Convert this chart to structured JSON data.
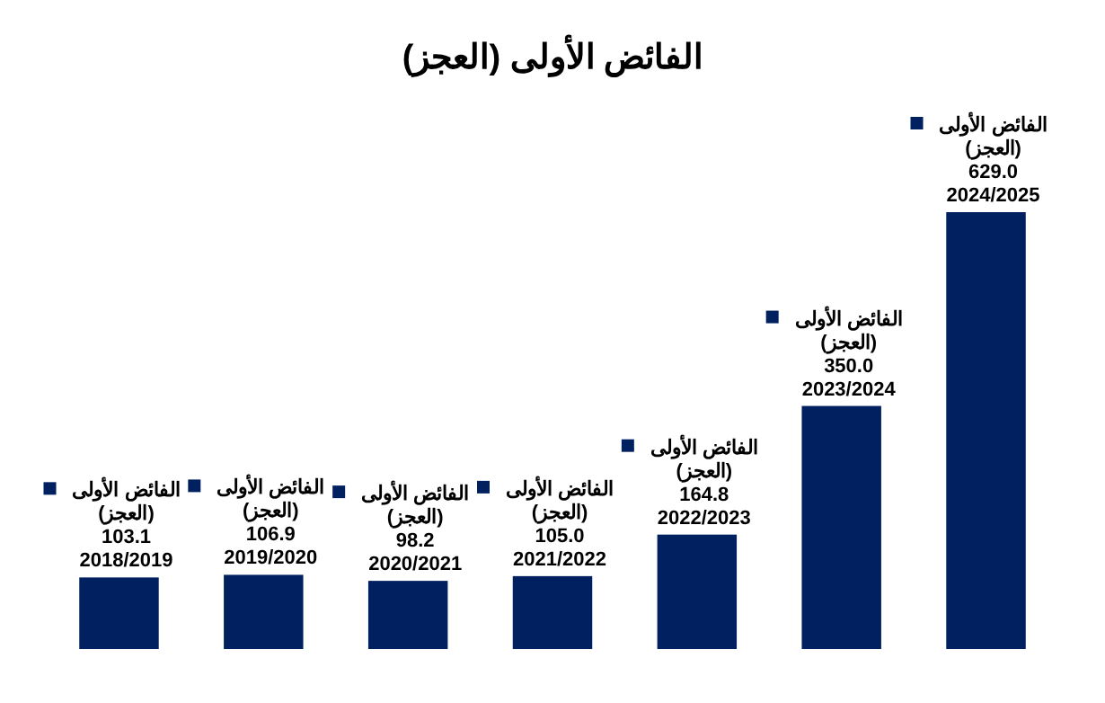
{
  "chart_data": {
    "type": "bar",
    "title": "الفائض الأولى (العجز)",
    "categories": [
      "2018/2019",
      "2019/2020",
      "2020/2021",
      "2021/2022",
      "2022/2023",
      "2023/2024",
      "2024/2025"
    ],
    "series": [
      {
        "name": "الفائض الأولى (العجز)",
        "color": "#002060",
        "values": [
          103.1,
          106.9,
          98.2,
          105.0,
          164.8,
          350.0,
          629.0
        ],
        "value_labels": [
          "103.1",
          "106.9",
          "98.2",
          "105.0",
          "164.8",
          "350.0",
          "629.0"
        ]
      }
    ]
  }
}
